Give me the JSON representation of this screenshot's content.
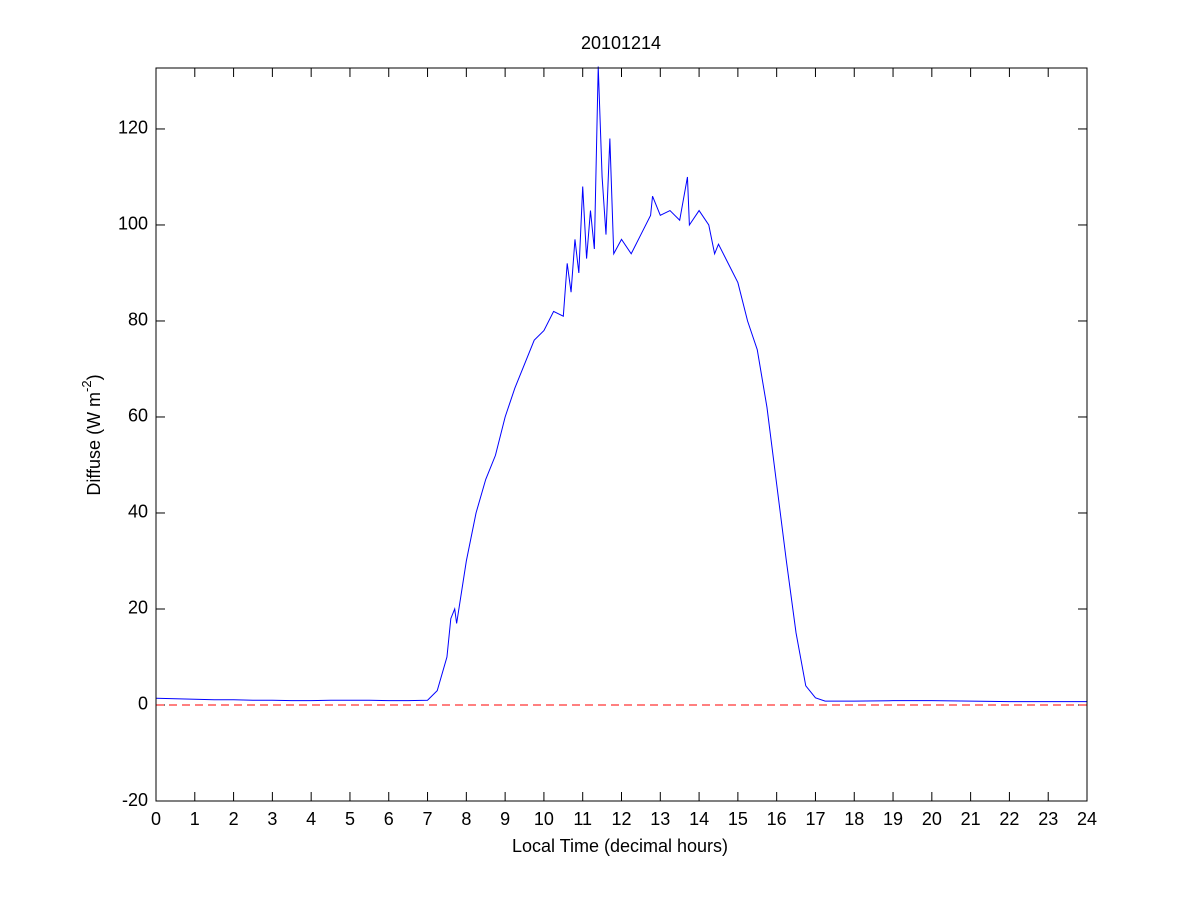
{
  "chart_data": {
    "type": "line",
    "title": "20101214",
    "xlabel": "Local Time (decimal hours)",
    "ylabel": {
      "text": "Diffuse (W m",
      "sup": "-2",
      "end": ")"
    },
    "xlim": [
      0,
      24
    ],
    "ylim": [
      -20,
      132.7
    ],
    "xticks": [
      0,
      1,
      2,
      3,
      4,
      5,
      6,
      7,
      8,
      9,
      10,
      11,
      12,
      13,
      14,
      15,
      16,
      17,
      18,
      19,
      20,
      21,
      22,
      23,
      24
    ],
    "yticks": [
      -20,
      0,
      20,
      40,
      60,
      80,
      100,
      120
    ],
    "hline": {
      "value": 0,
      "color": "#ff0000"
    },
    "series": [
      {
        "color": "#0000ff",
        "x": [
          0,
          0.5,
          1,
          1.5,
          2,
          2.5,
          3,
          3.5,
          4,
          4.5,
          5,
          5.5,
          6,
          6.5,
          7,
          7.25,
          7.5,
          7.6,
          7.7,
          7.75,
          8,
          8.25,
          8.5,
          8.75,
          9,
          9.25,
          9.5,
          9.75,
          10,
          10.25,
          10.5,
          10.6,
          10.7,
          10.8,
          10.9,
          11,
          11.1,
          11.2,
          11.3,
          11.4,
          11.5,
          11.6,
          11.7,
          11.8,
          12,
          12.25,
          12.5,
          12.75,
          12.8,
          13,
          13.25,
          13.5,
          13.7,
          13.75,
          14,
          14.25,
          14.4,
          14.5,
          14.75,
          15,
          15.25,
          15.5,
          15.75,
          16,
          16.25,
          16.5,
          16.75,
          17,
          17.25,
          18,
          19,
          20,
          21,
          22,
          23,
          24
        ],
        "values": [
          1.4,
          1.3,
          1.2,
          1.1,
          1.1,
          1,
          1,
          0.9,
          0.9,
          1,
          1,
          1,
          0.9,
          0.9,
          1,
          3,
          10,
          18,
          20,
          17,
          30,
          40,
          47,
          52,
          60,
          66,
          71,
          76,
          78,
          82,
          81,
          92,
          86,
          97,
          90,
          108,
          93,
          103,
          95,
          133,
          110,
          98,
          118,
          94,
          97,
          94,
          98,
          102,
          106,
          102,
          103,
          101,
          110,
          100,
          103,
          100,
          94,
          96,
          92,
          88,
          80,
          74,
          62,
          46,
          30,
          15,
          4,
          1.5,
          0.8,
          0.8,
          0.9,
          0.9,
          0.8,
          0.7,
          0.7,
          0.7
        ]
      }
    ]
  }
}
